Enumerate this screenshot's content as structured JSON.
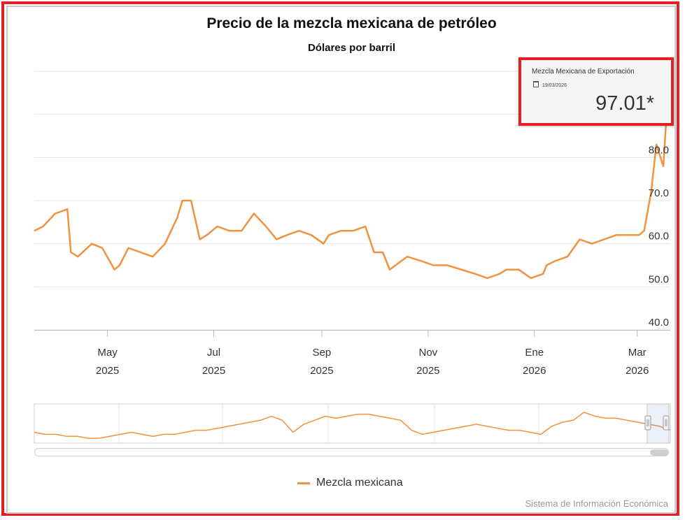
{
  "chart_data": {
    "type": "line",
    "title": "Precio de la mezcla mexicana de petróleo",
    "subtitle": "Dólares por barril",
    "xlabel": "",
    "ylabel": "",
    "y_ticks": [
      "40.0",
      "50.0",
      "60.0",
      "70.0",
      "80.0"
    ],
    "x_ticks": [
      {
        "label": "May\n2025",
        "date": "2025-05-01"
      },
      {
        "label": "Jul\n2025",
        "date": "2025-07-01"
      },
      {
        "label": "Sep\n2025",
        "date": "2025-09-01"
      },
      {
        "label": "Nov\n2025",
        "date": "2025-11-01"
      },
      {
        "label": "Ene\n2026",
        "date": "2026-01-01"
      },
      {
        "label": "Mar\n2026",
        "date": "2026-03-01"
      }
    ],
    "ylim": [
      40,
      100
    ],
    "xlim": [
      "2025-03-20",
      "2026-03-20"
    ],
    "grid": true,
    "legend_position": "bottom",
    "color": "#f0923e",
    "series": [
      {
        "name": "Mezcla mexicana",
        "x": [
          "2025-03-20",
          "2025-03-25",
          "2025-04-01",
          "2025-04-08",
          "2025-04-10",
          "2025-04-14",
          "2025-04-22",
          "2025-04-28",
          "2025-05-05",
          "2025-05-08",
          "2025-05-13",
          "2025-05-20",
          "2025-05-27",
          "2025-06-03",
          "2025-06-10",
          "2025-06-13",
          "2025-06-18",
          "2025-06-23",
          "2025-06-27",
          "2025-07-03",
          "2025-07-10",
          "2025-07-17",
          "2025-07-24",
          "2025-07-31",
          "2025-08-06",
          "2025-08-12",
          "2025-08-19",
          "2025-08-26",
          "2025-09-02",
          "2025-09-05",
          "2025-09-12",
          "2025-09-19",
          "2025-09-26",
          "2025-10-01",
          "2025-10-06",
          "2025-10-10",
          "2025-10-20",
          "2025-10-28",
          "2025-11-04",
          "2025-11-12",
          "2025-11-20",
          "2025-11-28",
          "2025-12-05",
          "2025-12-12",
          "2025-12-16",
          "2025-12-23",
          "2025-12-30",
          "2026-01-06",
          "2026-01-08",
          "2026-01-13",
          "2026-01-20",
          "2026-01-27",
          "2026-02-03",
          "2026-02-10",
          "2026-02-17",
          "2026-02-24",
          "2026-03-02",
          "2026-03-05",
          "2026-03-09",
          "2026-03-12",
          "2026-03-16",
          "2026-03-19"
        ],
        "y": [
          63,
          64,
          67,
          68,
          58,
          57,
          60,
          59,
          54,
          55,
          59,
          58,
          57,
          60,
          66,
          70,
          70,
          61,
          62,
          64,
          63,
          63,
          67,
          64,
          61,
          62,
          63,
          62,
          60,
          62,
          63,
          63,
          64,
          58,
          58,
          54,
          57,
          56,
          55,
          55,
          54,
          53,
          52,
          53,
          54,
          54,
          52,
          53,
          55,
          56,
          57,
          61,
          60,
          61,
          62,
          62,
          62,
          63,
          72,
          83,
          78,
          97.01
        ]
      }
    ]
  },
  "tooltip": {
    "series_name": "Mezcla Mexicana de Exportación",
    "date": "19/03/2026",
    "value": "97.01*"
  },
  "credits": "Sistema de Información Económica"
}
